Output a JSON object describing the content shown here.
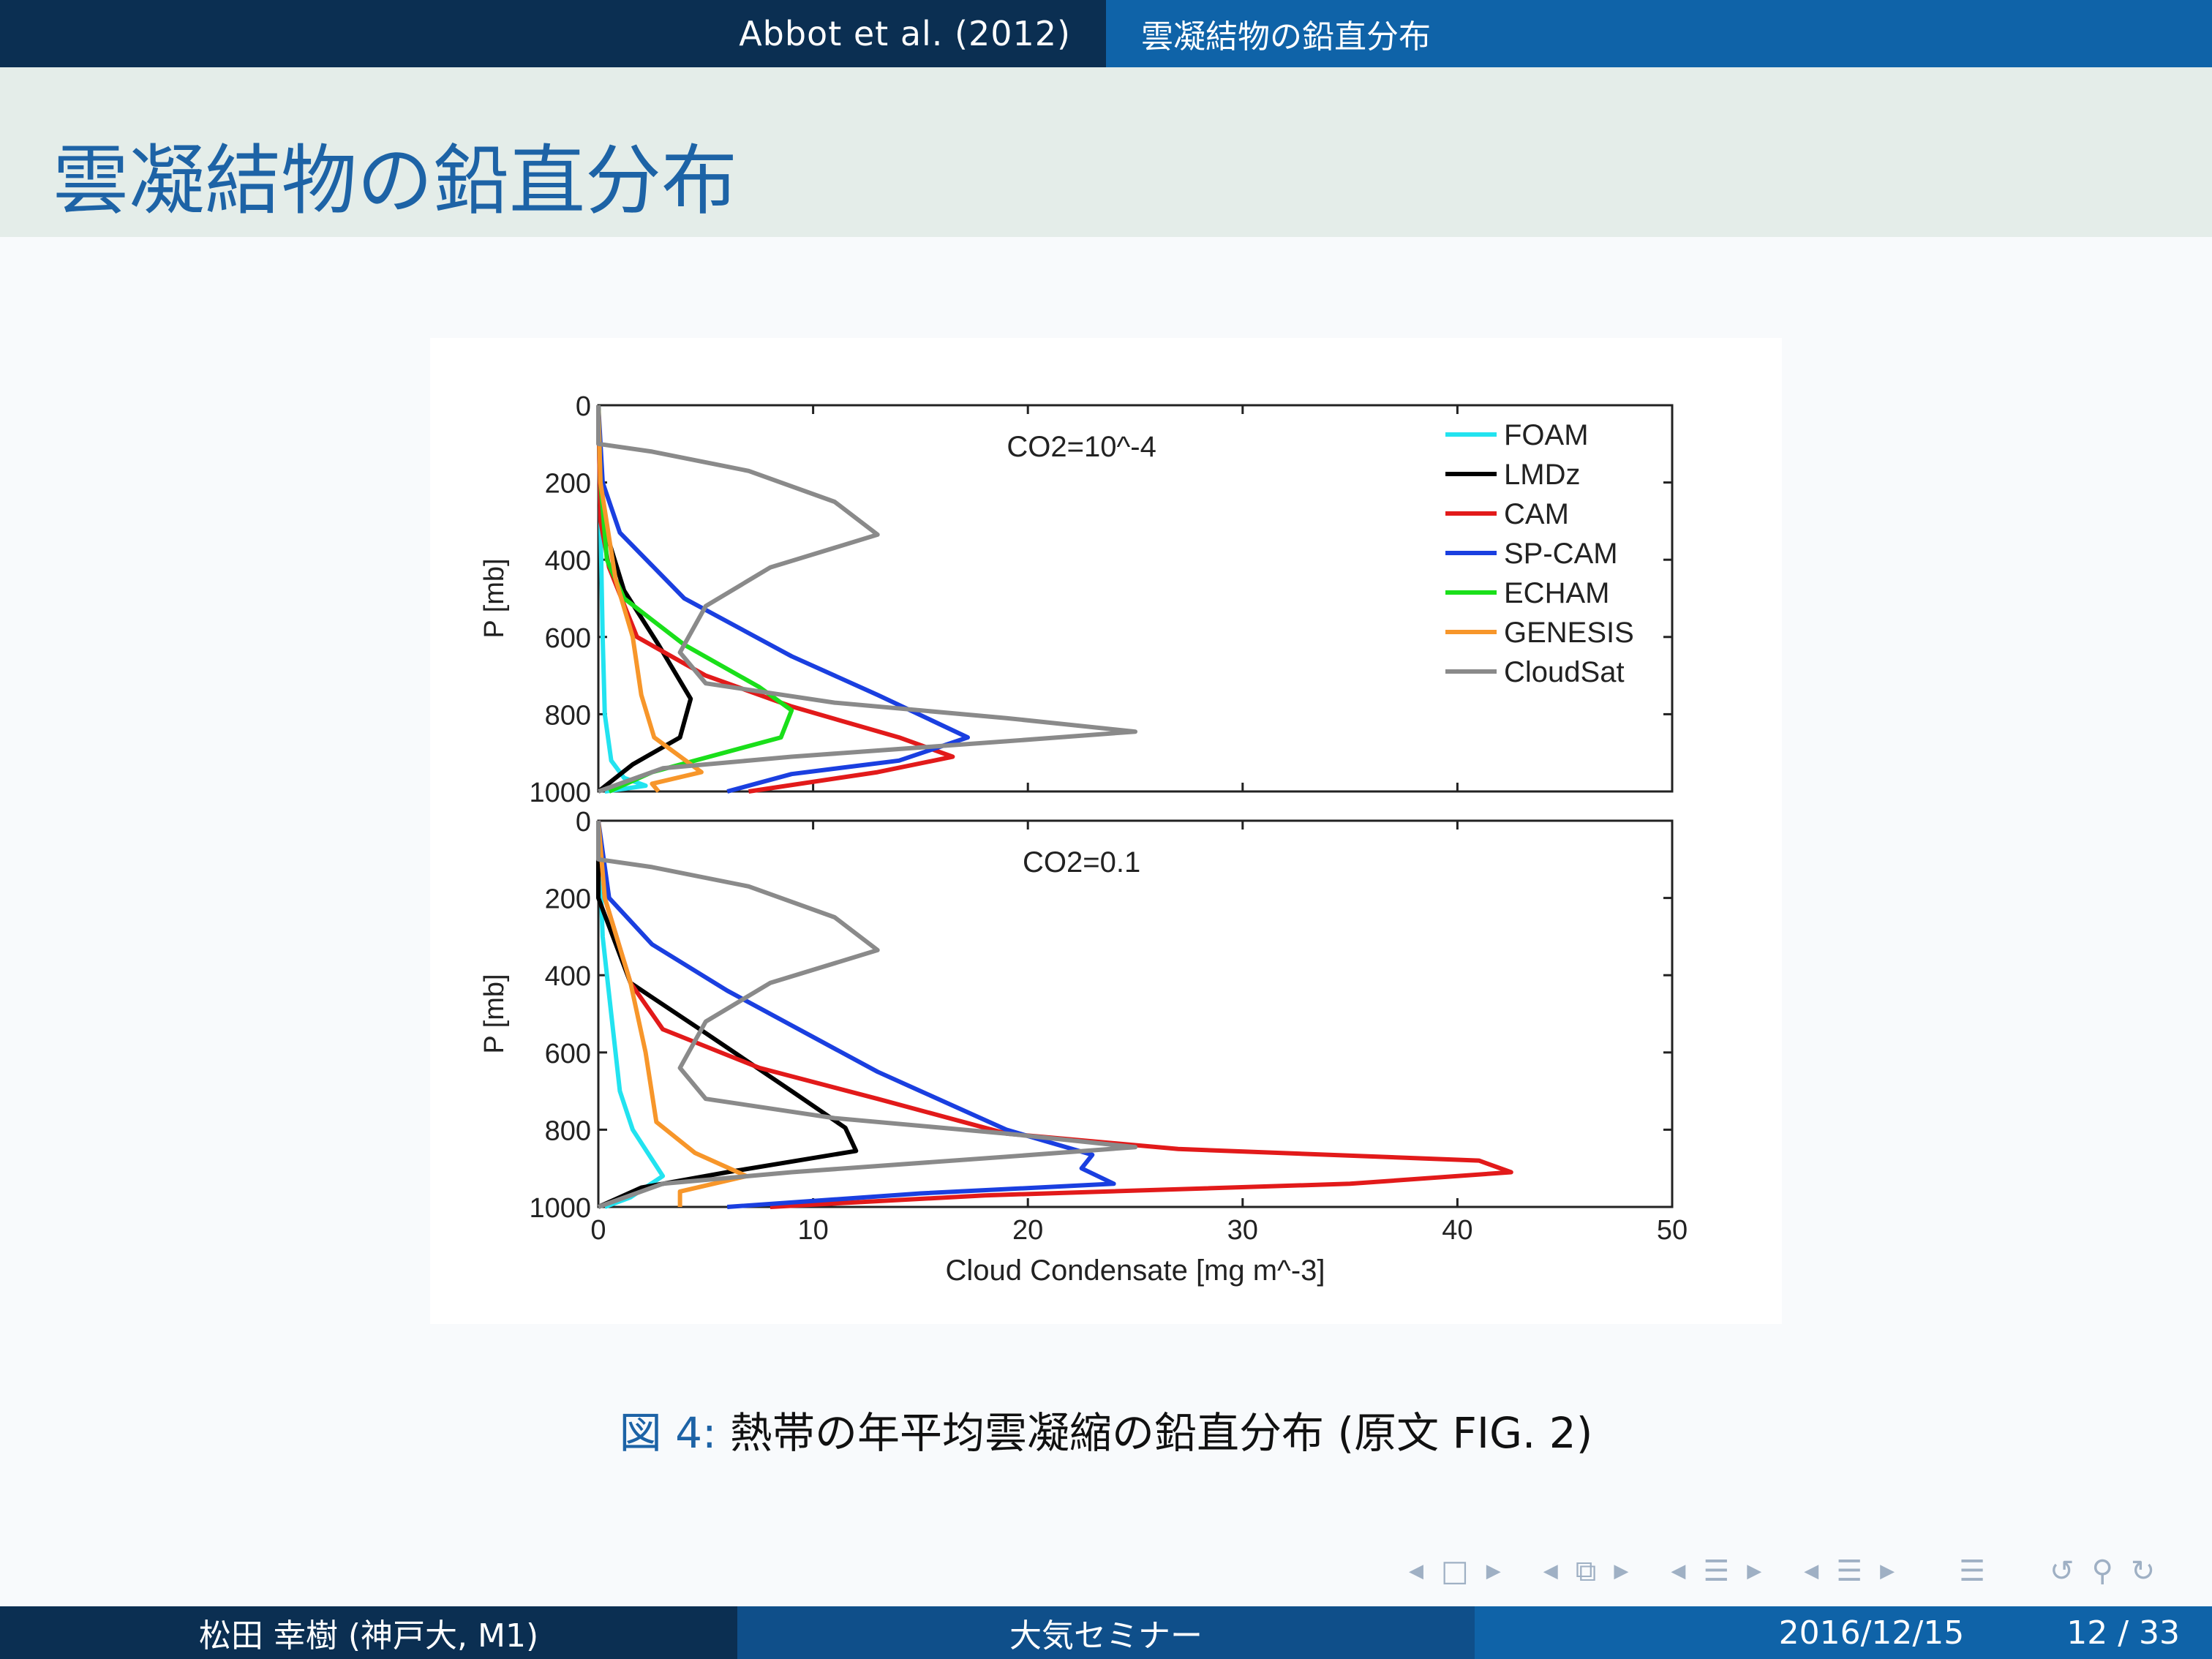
{
  "header": {
    "left": "Abbot et al. (2012)",
    "right": "雲凝結物の鉛直分布"
  },
  "frame_title": "雲凝結物の鉛直分布",
  "caption": {
    "label": "図 4:",
    "text": "熱帯の年平均雲凝縮の鉛直分布 (原文 FIG. 2)"
  },
  "footer": {
    "author": "松田 幸樹  (神戸大, M1)",
    "event": "大気セミナー",
    "date": "2016/12/15",
    "page": "12 / 33"
  },
  "nav_icons": [
    "nav-left-arrow-icon",
    "nav-frame-icon",
    "nav-right-arrow-icon",
    "nav-left-arrow-icon",
    "nav-subsection-icon",
    "nav-right-arrow-icon",
    "nav-left-arrow-icon",
    "nav-section-icon",
    "nav-right-arrow-icon",
    "nav-left-arrow-icon",
    "nav-section-icon",
    "nav-right-arrow-icon",
    "nav-toc-icon",
    "nav-back-icon",
    "nav-search-icon",
    "nav-forward-icon"
  ],
  "colors": {
    "header_dark": "#0b2f52",
    "header_blue": "#0f63a8",
    "title_blue": "#1d63a6",
    "title_bg": "#e4ede9"
  },
  "chart_data": [
    {
      "type": "line",
      "annotation": "CO2=10^-4",
      "ylabel": "P [mb]",
      "xlabel": "",
      "xlim": [
        0,
        50
      ],
      "ylim": [
        1000,
        0
      ],
      "yticks": [
        0,
        200,
        400,
        600,
        800,
        1000
      ],
      "legend_position": "top-right",
      "series": [
        {
          "name": "FOAM",
          "color": "#22e3f0",
          "points": [
            [
              0,
              0
            ],
            [
              0.1,
              300
            ],
            [
              0.2,
              600
            ],
            [
              0.3,
              800
            ],
            [
              0.6,
              920
            ],
            [
              1.2,
              965
            ],
            [
              2.2,
              985
            ],
            [
              0.3,
              1000
            ]
          ]
        },
        {
          "name": "LMDz",
          "color": "#000000",
          "points": [
            [
              0,
              0
            ],
            [
              0.2,
              300
            ],
            [
              1.2,
              480
            ],
            [
              2.8,
              620
            ],
            [
              4.3,
              760
            ],
            [
              3.8,
              860
            ],
            [
              1.6,
              930
            ],
            [
              0,
              1000
            ]
          ]
        },
        {
          "name": "CAM",
          "color": "#e21a1a",
          "points": [
            [
              0,
              0
            ],
            [
              0.1,
              300
            ],
            [
              0.5,
              420
            ],
            [
              1.8,
              600
            ],
            [
              5,
              700
            ],
            [
              9,
              780
            ],
            [
              14,
              860
            ],
            [
              16.5,
              910
            ],
            [
              13,
              950
            ],
            [
              7,
              1000
            ]
          ]
        },
        {
          "name": "SP-CAM",
          "color": "#1a3fe0",
          "points": [
            [
              0,
              0
            ],
            [
              0.2,
              200
            ],
            [
              1,
              330
            ],
            [
              4,
              500
            ],
            [
              9,
              650
            ],
            [
              13,
              750
            ],
            [
              17.2,
              860
            ],
            [
              14,
              920
            ],
            [
              9,
              955
            ],
            [
              6,
              1000
            ]
          ]
        },
        {
          "name": "ECHAM",
          "color": "#1adf1a",
          "points": [
            [
              0,
              0
            ],
            [
              0.1,
              200
            ],
            [
              0.4,
              400
            ],
            [
              1.2,
              500
            ],
            [
              4,
              620
            ],
            [
              7.5,
              730
            ],
            [
              9,
              790
            ],
            [
              8.5,
              860
            ],
            [
              2.5,
              950
            ],
            [
              0.5,
              1000
            ]
          ]
        },
        {
          "name": "GENESIS",
          "color": "#f7962a",
          "points": [
            [
              0,
              0
            ],
            [
              0.1,
              200
            ],
            [
              0.8,
              450
            ],
            [
              1.6,
              600
            ],
            [
              2,
              750
            ],
            [
              2.6,
              860
            ],
            [
              4.8,
              950
            ],
            [
              2.5,
              980
            ],
            [
              2.8,
              1000
            ]
          ]
        },
        {
          "name": "CloudSat",
          "color": "#8a8a8a",
          "points": [
            [
              0,
              0
            ],
            [
              0,
              100
            ],
            [
              2.5,
              120
            ],
            [
              7,
              170
            ],
            [
              11,
              250
            ],
            [
              13,
              335
            ],
            [
              8,
              420
            ],
            [
              5,
              520
            ],
            [
              3.8,
              640
            ],
            [
              5,
              720
            ],
            [
              11,
              770
            ],
            [
              19,
              810
            ],
            [
              25,
              845
            ],
            [
              19,
              870
            ],
            [
              9,
              910
            ],
            [
              3,
              940
            ],
            [
              0,
              1000
            ]
          ]
        }
      ]
    },
    {
      "type": "line",
      "annotation": "CO2=0.1",
      "ylabel": "P [mb]",
      "xlabel": "Cloud Condensate [mg m^-3]",
      "xlim": [
        0,
        50
      ],
      "ylim": [
        1000,
        0
      ],
      "xticks": [
        0,
        10,
        20,
        30,
        40,
        50
      ],
      "yticks": [
        0,
        200,
        400,
        600,
        800,
        1000
      ],
      "series": [
        {
          "name": "FOAM",
          "color": "#22e3f0",
          "points": [
            [
              0,
              0
            ],
            [
              0.2,
              300
            ],
            [
              0.6,
              500
            ],
            [
              1,
              700
            ],
            [
              1.6,
              800
            ],
            [
              3,
              920
            ],
            [
              1.5,
              975
            ],
            [
              0.3,
              1000
            ]
          ]
        },
        {
          "name": "LMDz",
          "color": "#000000",
          "points": [
            [
              0,
              0
            ],
            [
              0,
              200
            ],
            [
              1.5,
              420
            ],
            [
              5,
              550
            ],
            [
              9,
              700
            ],
            [
              11.5,
              795
            ],
            [
              12,
              855
            ],
            [
              6,
              910
            ],
            [
              2,
              950
            ],
            [
              0,
              1000
            ]
          ]
        },
        {
          "name": "CAM",
          "color": "#e21a1a",
          "points": [
            [
              0,
              0
            ],
            [
              0.3,
              200
            ],
            [
              1.5,
              420
            ],
            [
              3,
              540
            ],
            [
              7.5,
              640
            ],
            [
              13,
              720
            ],
            [
              19,
              810
            ],
            [
              27,
              850
            ],
            [
              41,
              880
            ],
            [
              42.5,
              910
            ],
            [
              35,
              940
            ],
            [
              18,
              970
            ],
            [
              8,
              1000
            ]
          ]
        },
        {
          "name": "SP-CAM",
          "color": "#1a3fe0",
          "points": [
            [
              0,
              0
            ],
            [
              0.5,
              200
            ],
            [
              2.5,
              320
            ],
            [
              6,
              440
            ],
            [
              10,
              560
            ],
            [
              13,
              650
            ],
            [
              15,
              700
            ],
            [
              19,
              800
            ],
            [
              23,
              865
            ],
            [
              22.5,
              900
            ],
            [
              24,
              940
            ],
            [
              15,
              965
            ],
            [
              6,
              1000
            ]
          ]
        },
        {
          "name": "ECHAM",
          "color": "#1adf1a",
          "points": []
        },
        {
          "name": "GENESIS",
          "color": "#f7962a",
          "points": [
            [
              0,
              0
            ],
            [
              0.3,
              200
            ],
            [
              1.5,
              420
            ],
            [
              2.2,
              600
            ],
            [
              2.7,
              780
            ],
            [
              4.5,
              860
            ],
            [
              6.9,
              920
            ],
            [
              3.8,
              960
            ],
            [
              3.8,
              1000
            ]
          ]
        },
        {
          "name": "CloudSat",
          "color": "#8a8a8a",
          "points": [
            [
              0,
              0
            ],
            [
              0,
              100
            ],
            [
              2.5,
              120
            ],
            [
              7,
              170
            ],
            [
              11,
              250
            ],
            [
              13,
              335
            ],
            [
              8,
              420
            ],
            [
              5,
              520
            ],
            [
              3.8,
              640
            ],
            [
              5,
              720
            ],
            [
              11,
              770
            ],
            [
              19,
              810
            ],
            [
              25,
              845
            ],
            [
              19,
              870
            ],
            [
              9,
              910
            ],
            [
              3,
              940
            ],
            [
              0,
              1000
            ]
          ]
        }
      ]
    }
  ]
}
